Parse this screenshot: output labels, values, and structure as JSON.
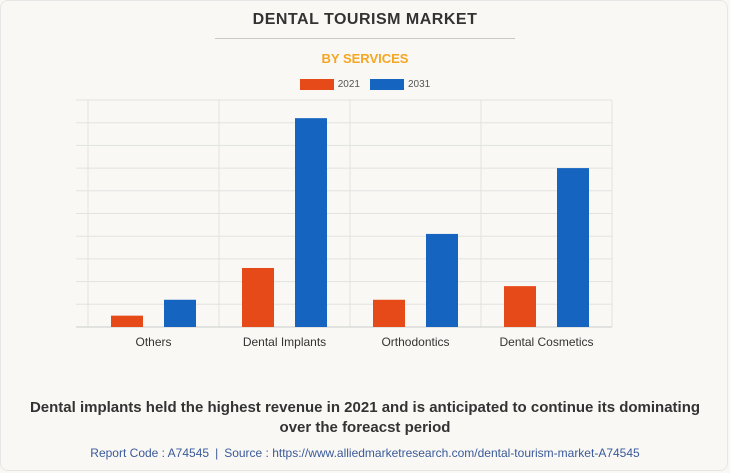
{
  "header": {
    "title": "DENTAL TOURISM MARKET",
    "subtitle": "BY SERVICES"
  },
  "colors": {
    "series_2021": "#e64a19",
    "series_2031": "#1565c0",
    "subtitle": "#f5a623"
  },
  "chart_data": {
    "type": "bar",
    "title": "DENTAL TOURISM MARKET",
    "subtitle": "BY SERVICES",
    "xlabel": "",
    "ylabel": "",
    "categories": [
      "Others",
      "Dental Implants",
      "Orthodontics",
      "Dental Cosmetics"
    ],
    "series": [
      {
        "name": "2021",
        "values": [
          0.5,
          2.6,
          1.2,
          1.8
        ]
      },
      {
        "name": "2031",
        "values": [
          1.2,
          9.2,
          4.1,
          7.0
        ]
      }
    ],
    "ylim": [
      0,
      10
    ],
    "grid": true,
    "legend_position": "top-center"
  },
  "caption": "Dental implants held the highest revenue in 2021 and is anticipated to continue its dominating over the foreacst period",
  "footer": {
    "report_code": "Report Code : A74545",
    "separator": "|",
    "source": "Source : https://www.alliedmarketresearch.com/dental-tourism-market-A74545"
  }
}
